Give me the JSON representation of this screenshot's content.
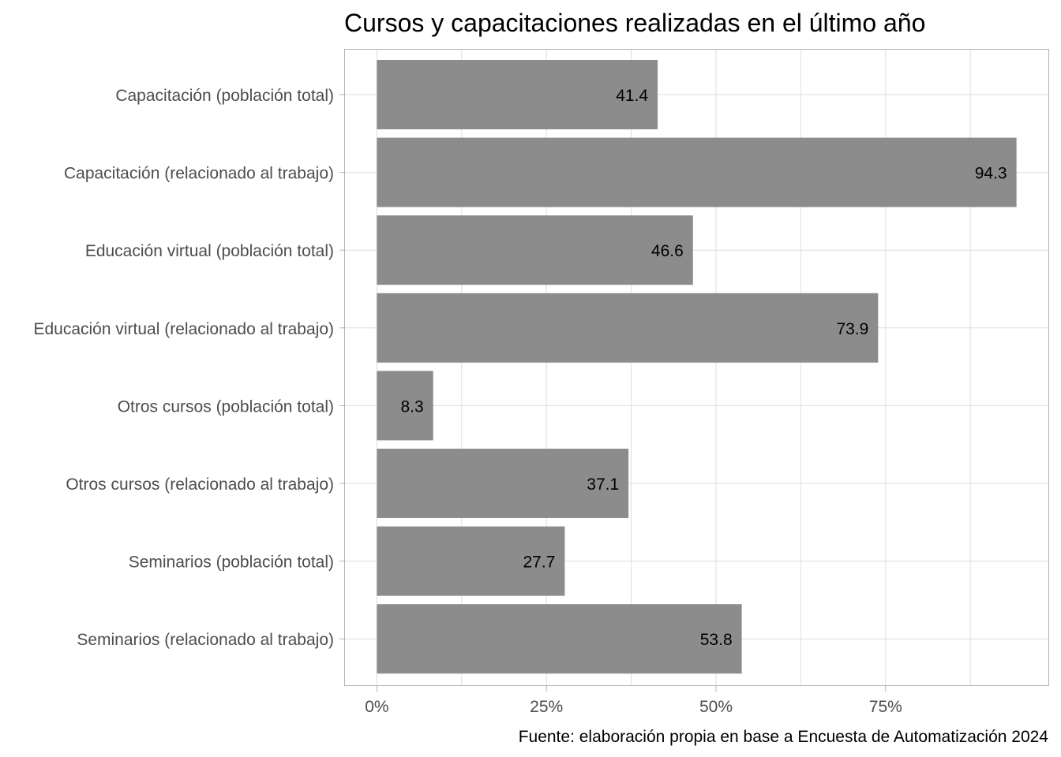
{
  "chart_data": {
    "type": "bar",
    "orientation": "horizontal",
    "title": "Cursos y capacitaciones realizadas en el último año",
    "caption": "Fuente: elaboración propia en base a Encuesta de Automatización 2024",
    "categories": [
      "Capacitación (población total)",
      "Capacitación (relacionado al trabajo)",
      "Educación virtual (población total)",
      "Educación virtual (relacionado al trabajo)",
      "Otros cursos (población total)",
      "Otros cursos (relacionado al trabajo)",
      "Seminarios (población total)",
      "Seminarios (relacionado al trabajo)"
    ],
    "values": [
      41.4,
      94.3,
      46.6,
      73.9,
      8.3,
      37.1,
      27.7,
      53.8
    ],
    "value_labels": [
      "41.4",
      "94.3",
      "46.6",
      "73.9",
      "8.3",
      "37.1",
      "27.7",
      "53.8"
    ],
    "x_ticks": [
      0,
      25,
      50,
      75
    ],
    "x_tick_labels": [
      "0%",
      "25%",
      "50%",
      "75%"
    ],
    "xlim": [
      -4.7,
      99.0
    ],
    "grid": true,
    "legend": "none",
    "colors": {
      "bar": "#8c8c8c",
      "grid": "#dedede",
      "panel_border": "#b3b3b3"
    }
  }
}
